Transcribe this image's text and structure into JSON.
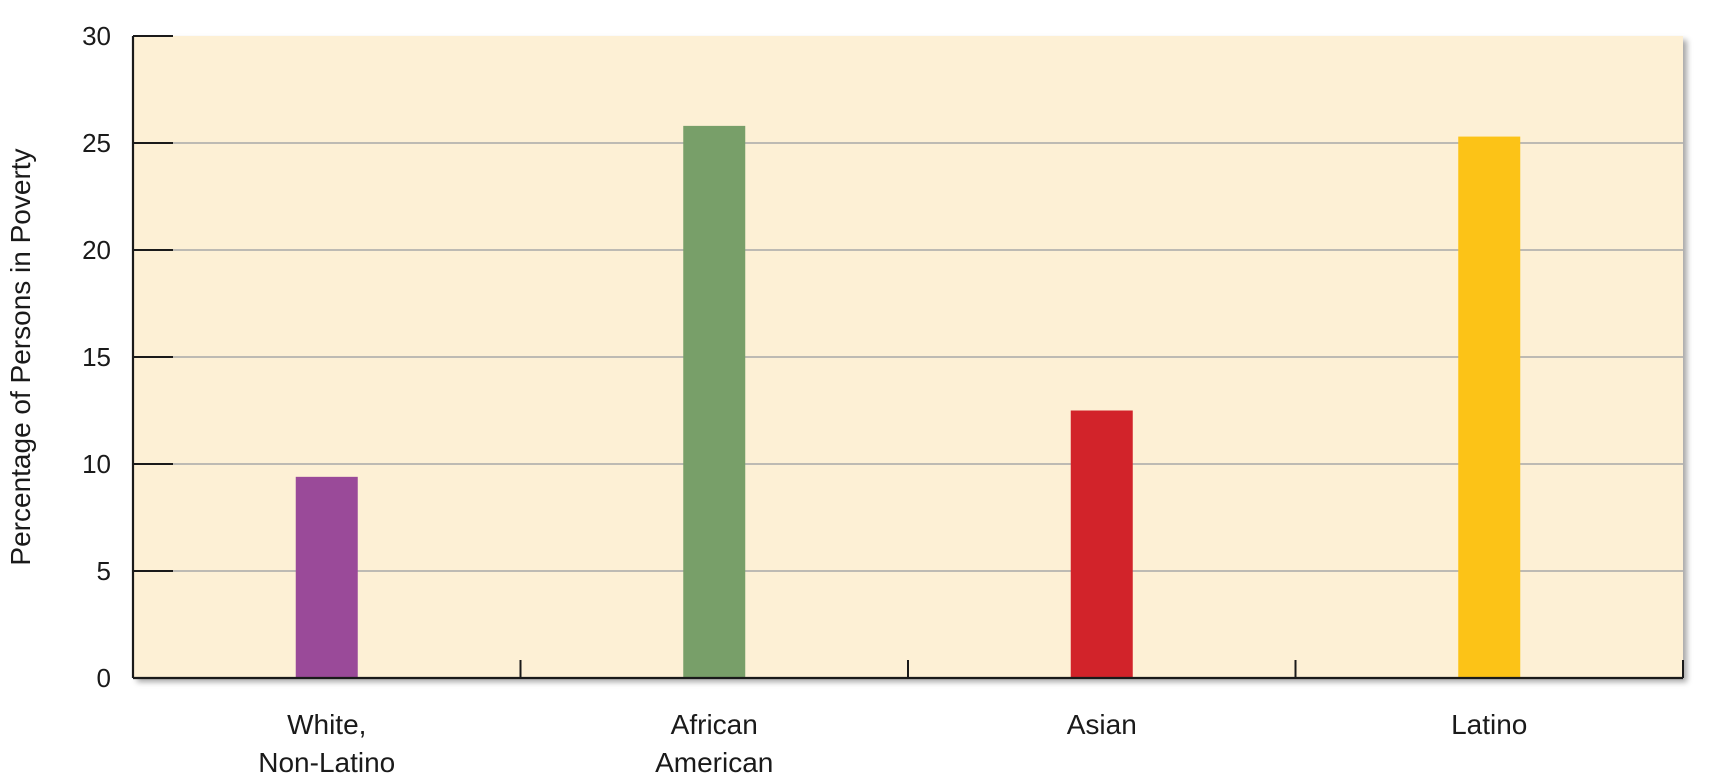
{
  "chart_data": {
    "type": "bar",
    "title": "",
    "xlabel": "",
    "ylabel": "Percentage of Persons in Poverty",
    "ylim": [
      0,
      30
    ],
    "yticks": [
      0,
      5,
      10,
      15,
      20,
      25,
      30
    ],
    "grid": true,
    "legend": "none",
    "categories": [
      [
        "White,",
        "Non-Latino"
      ],
      [
        "African",
        "American"
      ],
      [
        "Asian"
      ],
      [
        "Latino"
      ]
    ],
    "values": [
      9.4,
      25.8,
      12.5,
      25.3
    ],
    "colors": [
      "#9a4a99",
      "#789f69",
      "#d2232a",
      "#fcc317"
    ],
    "background_color": "#fdf0d5"
  }
}
